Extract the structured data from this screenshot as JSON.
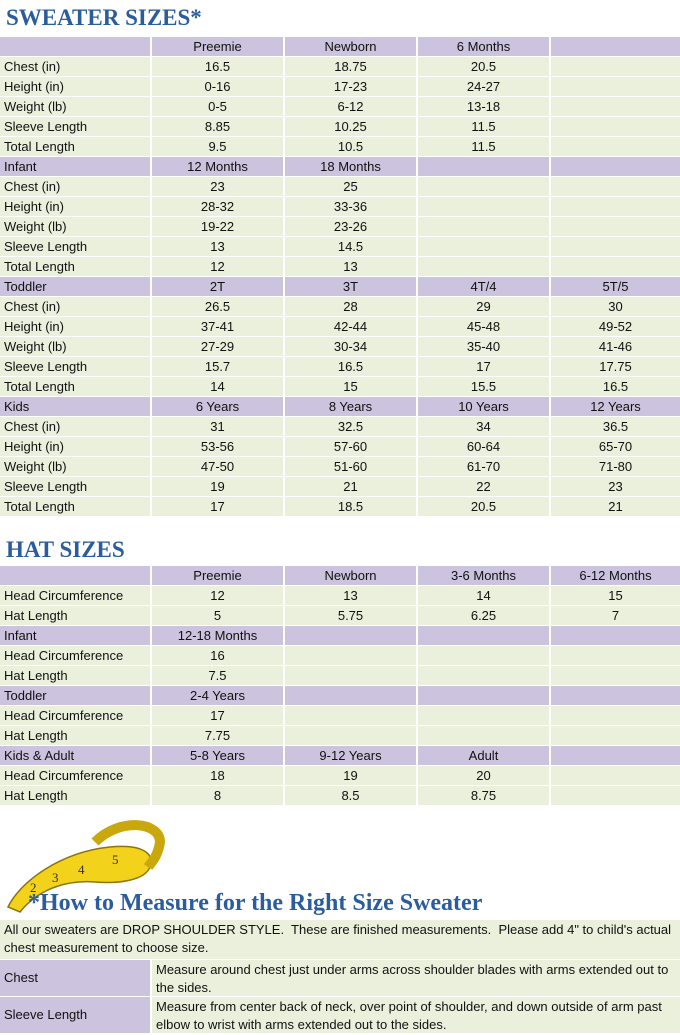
{
  "sweater": {
    "title": "SWEATER SIZES*",
    "groups": [
      {
        "columns": [
          "Preemie",
          "Newborn",
          "6 Months"
        ],
        "rows": [
          {
            "label": "Chest (in)",
            "values": [
              "16.5",
              "18.75",
              "20.5"
            ]
          },
          {
            "label": "Height (in)",
            "values": [
              "0-16",
              "17-23",
              "24-27"
            ]
          },
          {
            "label": "Weight (lb)",
            "values": [
              "0-5",
              "6-12",
              "13-18"
            ]
          },
          {
            "label": "Sleeve Length",
            "values": [
              "8.85",
              "10.25",
              "11.5"
            ]
          },
          {
            "label": "Total Length",
            "values": [
              "9.5",
              "10.5",
              "11.5"
            ]
          }
        ]
      },
      {
        "label": "Infant",
        "columns": [
          "12 Months",
          "18 Months"
        ],
        "rows": [
          {
            "label": "Chest (in)",
            "values": [
              "23",
              "25"
            ]
          },
          {
            "label": "Height (in)",
            "values": [
              "28-32",
              "33-36"
            ]
          },
          {
            "label": "Weight (lb)",
            "values": [
              "19-22",
              "23-26"
            ]
          },
          {
            "label": "Sleeve Length",
            "values": [
              "13",
              "14.5"
            ]
          },
          {
            "label": "Total Length",
            "values": [
              "12",
              "13"
            ]
          }
        ]
      },
      {
        "label": "Toddler",
        "columns": [
          "2T",
          "3T",
          "4T/4",
          "5T/5"
        ],
        "rows": [
          {
            "label": "Chest (in)",
            "values": [
              "26.5",
              "28",
              "29",
              "30"
            ]
          },
          {
            "label": "Height (in)",
            "values": [
              "37-41",
              "42-44",
              "45-48",
              "49-52"
            ]
          },
          {
            "label": "Weight (lb)",
            "values": [
              "27-29",
              "30-34",
              "35-40",
              "41-46"
            ]
          },
          {
            "label": "Sleeve Length",
            "values": [
              "15.7",
              "16.5",
              "17",
              "17.75"
            ]
          },
          {
            "label": "Total Length",
            "values": [
              "14",
              "15",
              "15.5",
              "16.5"
            ]
          }
        ]
      },
      {
        "label": "Kids",
        "columns": [
          "6 Years",
          "8 Years",
          "10 Years",
          "12 Years"
        ],
        "rows": [
          {
            "label": "Chest (in)",
            "values": [
              "31",
              "32.5",
              "34",
              "36.5"
            ]
          },
          {
            "label": "Height (in)",
            "values": [
              "53-56",
              "57-60",
              "60-64",
              "65-70"
            ]
          },
          {
            "label": "Weight (lb)",
            "values": [
              "47-50",
              "51-60",
              "61-70",
              "71-80"
            ]
          },
          {
            "label": "Sleeve Length",
            "values": [
              "19",
              "21",
              "22",
              "23"
            ]
          },
          {
            "label": "Total Length",
            "values": [
              "17",
              "18.5",
              "20.5",
              "21"
            ]
          }
        ]
      }
    ]
  },
  "hat": {
    "title": "HAT SIZES",
    "groups": [
      {
        "columns": [
          "Preemie",
          "Newborn",
          "3-6 Months",
          "6-12 Months"
        ],
        "rows": [
          {
            "label": "Head Circumference",
            "values": [
              "12",
              "13",
              "14",
              "15"
            ]
          },
          {
            "label": "Hat Length",
            "values": [
              "5",
              "5.75",
              "6.25",
              "7"
            ]
          }
        ]
      },
      {
        "label": "Infant",
        "columns": [
          "12-18 Months"
        ],
        "rows": [
          {
            "label": "Head Circumference",
            "values": [
              "16"
            ]
          },
          {
            "label": "Hat Length",
            "values": [
              "7.5"
            ]
          }
        ]
      },
      {
        "label": "Toddler",
        "columns": [
          "2-4 Years"
        ],
        "rows": [
          {
            "label": "Head Circumference",
            "values": [
              "17"
            ]
          },
          {
            "label": "Hat Length",
            "values": [
              "7.75"
            ]
          }
        ]
      },
      {
        "label": "Kids & Adult",
        "columns": [
          "5-8 Years",
          "9-12 Years",
          "Adult"
        ],
        "rows": [
          {
            "label": "Head Circumference",
            "values": [
              "18",
              "19",
              "20"
            ]
          },
          {
            "label": "Hat Length",
            "values": [
              "8",
              "8.5",
              "8.75"
            ]
          }
        ]
      }
    ]
  },
  "measure": {
    "title": "*How to Measure for the Right Size Sweater",
    "intro": "All our sweaters are DROP SHOULDER STYLE.  These are finished measurements.  Please add 4\" to child's actual chest measurement to choose size.",
    "items": [
      {
        "label": "Chest",
        "text": "Measure around chest just under arms across shoulder blades with arms extended out to the sides."
      },
      {
        "label": "Sleeve Length",
        "text": "Measure from center back of neck, over point of shoulder, and down outside of arm past elbow to wrist with arms extended out to the sides."
      }
    ]
  }
}
